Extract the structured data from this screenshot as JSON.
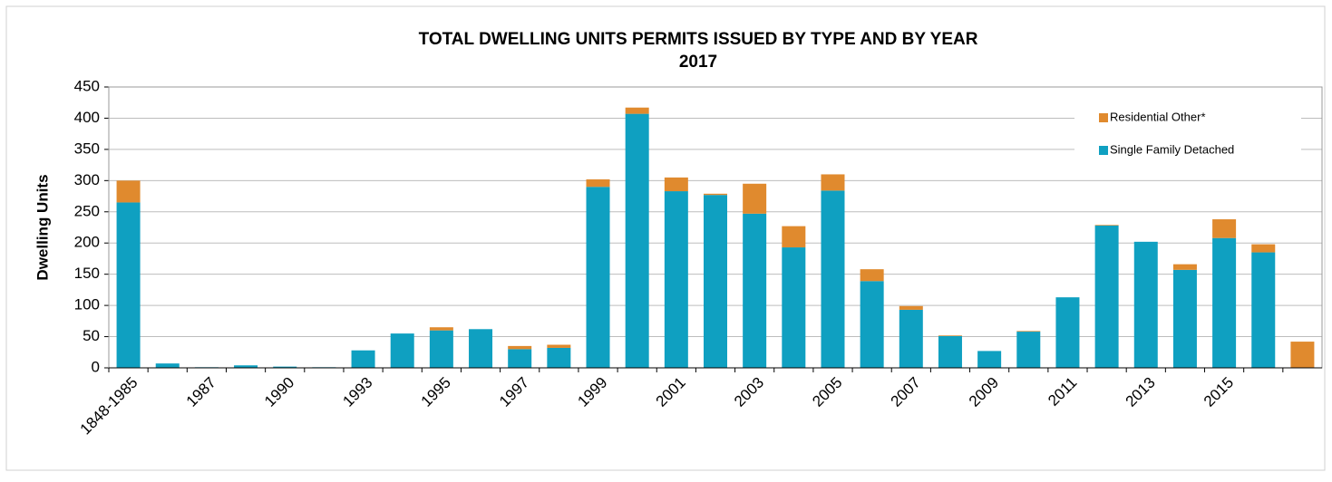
{
  "chart_data": {
    "type": "stacked_bar",
    "title": "TOTAL DWELLING UNITS PERMITS ISSUED BY TYPE AND BY YEAR",
    "subtitle": "2017",
    "y_label": "Dwelling Units",
    "categories": [
      "1848-1985",
      null,
      "1987",
      null,
      "1990",
      null,
      "1993",
      null,
      "1995",
      null,
      "1997",
      null,
      "1999",
      null,
      "2001",
      null,
      "2003",
      null,
      "2005",
      null,
      "2007",
      null,
      "2009",
      null,
      "2011",
      null,
      "2013",
      null,
      "2015",
      null,
      null
    ],
    "series": [
      {
        "name": "Single Family Detached",
        "color": "#0fa0c1",
        "values": [
          265,
          7,
          1,
          4,
          2,
          1,
          28,
          55,
          60,
          62,
          30,
          32,
          290,
          407,
          283,
          277,
          247,
          193,
          284,
          139,
          93,
          51,
          27,
          58,
          113,
          228,
          202,
          157,
          208,
          185,
          0
        ]
      },
      {
        "name": "Residential Other*",
        "color": "#e08a2e",
        "values": [
          35,
          0,
          0,
          0,
          0,
          0,
          0,
          0,
          5,
          0,
          5,
          5,
          12,
          10,
          22,
          2,
          48,
          34,
          26,
          19,
          6,
          1,
          0,
          1,
          0,
          1,
          0,
          9,
          30,
          13,
          42
        ]
      }
    ],
    "ylim": [
      0,
      450
    ],
    "yticks": [
      0,
      50,
      100,
      150,
      200,
      250,
      300,
      350,
      400,
      450
    ],
    "grid": true,
    "legend": "upper right"
  }
}
